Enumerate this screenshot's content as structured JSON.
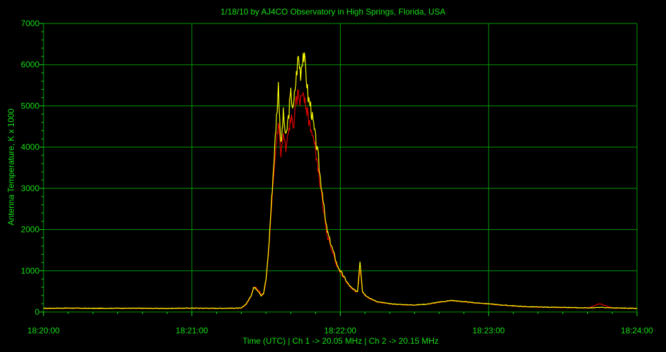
{
  "chart_data": {
    "type": "line",
    "title": "1/18/10  by  AJ4CO Observatory  in  High Springs, Florida, USA",
    "xlabel": "Time (UTC)  |  Ch 1 -> 20.05 MHz  |  Ch 2 -> 20.15 MHz",
    "ylabel": "Antenna Temperature, K x 1000",
    "xlim": [
      0,
      240
    ],
    "ylim": [
      0,
      7000
    ],
    "x_ticks": [
      {
        "t": 0,
        "label": "18:20:00"
      },
      {
        "t": 60,
        "label": "18:21:00"
      },
      {
        "t": 120,
        "label": "18:22:00"
      },
      {
        "t": 180,
        "label": "18:23:00"
      },
      {
        "t": 240,
        "label": "18:24:00"
      }
    ],
    "y_ticks": [
      0,
      1000,
      2000,
      3000,
      4000,
      5000,
      6000,
      7000
    ],
    "grid": true,
    "colors": {
      "background": "#000000",
      "grid": "#009a00",
      "text": "#16e016",
      "ch1": "#ffff00",
      "ch2": "#e00000"
    },
    "series": [
      {
        "name": "Ch 1 -> 20.05 MHz",
        "color": "#ffff00",
        "x": [
          0,
          10,
          20,
          30,
          40,
          50,
          60,
          70,
          80,
          82,
          84,
          85,
          86,
          87,
          88,
          89,
          90,
          91,
          92,
          93,
          94,
          95,
          96,
          97,
          98,
          99,
          100,
          101,
          102,
          103,
          104,
          105,
          106,
          107,
          108,
          109,
          110,
          111,
          112,
          113,
          114,
          115,
          116,
          117,
          118,
          119,
          120,
          121,
          122,
          123,
          124,
          125,
          126,
          127,
          128,
          129,
          130,
          132,
          135,
          140,
          145,
          150,
          155,
          160,
          165,
          170,
          175,
          180,
          185,
          190,
          195,
          200,
          210,
          220,
          225,
          230,
          240
        ],
        "y": [
          90,
          95,
          88,
          92,
          90,
          87,
          95,
          90,
          95,
          200,
          400,
          600,
          560,
          500,
          400,
          450,
          800,
          1500,
          2500,
          3500,
          4500,
          5500,
          4000,
          4800,
          4200,
          4700,
          5300,
          4900,
          5600,
          6200,
          5800,
          6300,
          5900,
          5200,
          5000,
          4600,
          4200,
          3800,
          3200,
          2800,
          2200,
          1900,
          1700,
          1500,
          1300,
          1100,
          1000,
          900,
          800,
          700,
          620,
          560,
          520,
          500,
          1250,
          500,
          420,
          330,
          250,
          200,
          180,
          170,
          190,
          240,
          280,
          250,
          220,
          200,
          170,
          150,
          130,
          120,
          110,
          100,
          110,
          100,
          90
        ]
      },
      {
        "name": "Ch 2 -> 20.15 MHz",
        "color": "#e00000",
        "x": [
          0,
          10,
          20,
          30,
          40,
          50,
          60,
          70,
          80,
          82,
          84,
          85,
          86,
          87,
          88,
          89,
          90,
          91,
          92,
          93,
          94,
          95,
          96,
          97,
          98,
          99,
          100,
          101,
          102,
          103,
          104,
          105,
          106,
          107,
          108,
          109,
          110,
          111,
          112,
          113,
          114,
          115,
          116,
          117,
          118,
          119,
          120,
          121,
          122,
          123,
          124,
          125,
          126,
          127,
          128,
          129,
          130,
          132,
          135,
          140,
          145,
          150,
          155,
          160,
          165,
          170,
          175,
          180,
          185,
          190,
          195,
          200,
          210,
          220,
          225,
          230,
          240
        ],
        "y": [
          85,
          90,
          85,
          88,
          86,
          84,
          90,
          86,
          90,
          180,
          380,
          620,
          580,
          520,
          430,
          420,
          750,
          1400,
          2300,
          3200,
          4000,
          4600,
          3800,
          4300,
          3900,
          4300,
          4700,
          4500,
          5000,
          5300,
          5100,
          5400,
          5100,
          4700,
          4500,
          4200,
          3900,
          3500,
          3000,
          2600,
          2100,
          1800,
          1600,
          1450,
          1250,
          1080,
          980,
          880,
          780,
          690,
          610,
          550,
          510,
          490,
          1050,
          480,
          400,
          320,
          240,
          195,
          175,
          165,
          185,
          235,
          275,
          245,
          215,
          195,
          165,
          145,
          125,
          115,
          105,
          95,
          200,
          95,
          85
        ]
      }
    ]
  }
}
